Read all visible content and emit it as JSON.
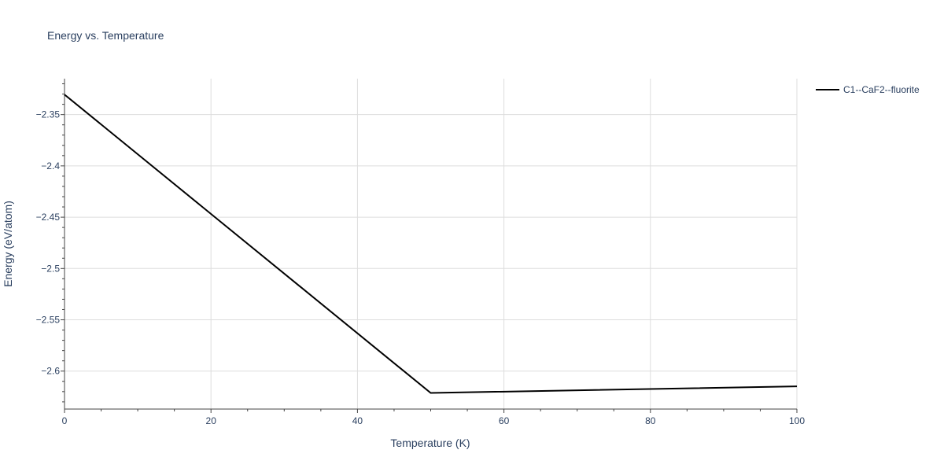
{
  "chart_data": {
    "type": "line",
    "title": "Energy vs. Temperature",
    "xlabel": "Temperature (K)",
    "ylabel": "Energy (eV/atom)",
    "xlim": [
      0,
      100
    ],
    "ylim": [
      -2.637,
      -2.315
    ],
    "xticks": [
      0,
      20,
      40,
      60,
      80,
      100
    ],
    "xtick_labels": [
      "0",
      "20",
      "40",
      "60",
      "80",
      "100"
    ],
    "yticks": [
      -2.35,
      -2.4,
      -2.45,
      -2.5,
      -2.55,
      -2.6
    ],
    "ytick_labels": [
      "−2.35",
      "−2.4",
      "−2.45",
      "−2.5",
      "−2.55",
      "−2.6"
    ],
    "grid": true,
    "legend_position": "top-right",
    "series": [
      {
        "name": "C1--CaF2--fluorite",
        "color": "#000000",
        "x": [
          0,
          50,
          100
        ],
        "y": [
          -2.3305,
          -2.6213,
          -2.6149
        ]
      }
    ]
  }
}
